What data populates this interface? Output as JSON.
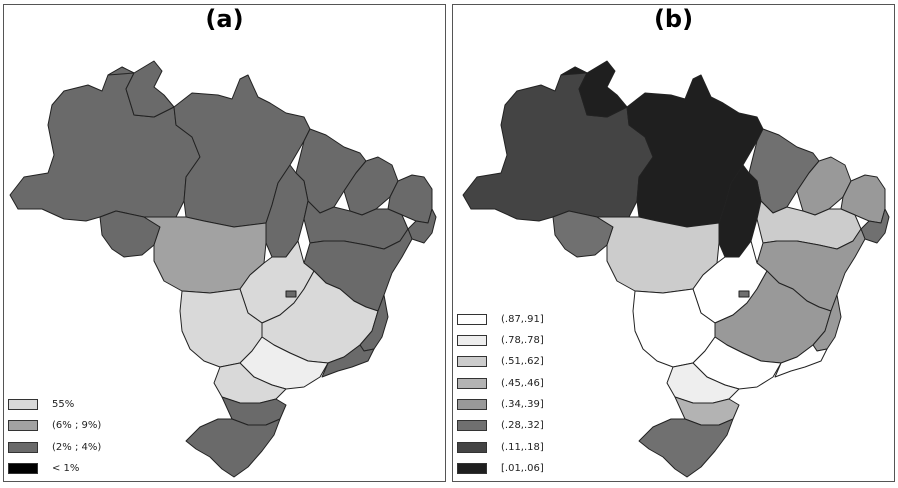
{
  "panel_a": {
    "title": "(a)",
    "legend": [
      {
        "label": "55%",
        "color": "#d9d9d9"
      },
      {
        "label": "(6% ; 9%)",
        "color": "#a2a2a2"
      },
      {
        "label": "(2% ; 4%)",
        "color": "#6a6a6a"
      },
      {
        "label": "< 1%",
        "color": "#000000"
      }
    ]
  },
  "panel_b": {
    "title": "(b)",
    "legend": [
      {
        "label": "(.87,.91]",
        "color": "#ffffff"
      },
      {
        "label": "(.78,.78]",
        "color": "#eeeeee"
      },
      {
        "label": "(.51,.62]",
        "color": "#cccccc"
      },
      {
        "label": "(.45,.46]",
        "color": "#b3b3b3"
      },
      {
        "label": "(.34,.39]",
        "color": "#999999"
      },
      {
        "label": "(.28,.32]",
        "color": "#707070"
      },
      {
        "label": "(.11,.18]",
        "color": "#444444"
      },
      {
        "label": "[.01,.06]",
        "color": "#1f1f1f"
      }
    ]
  },
  "regions": [
    {
      "name": "north-west",
      "color_a": "#6a6a6a",
      "color_b": "#444444"
    },
    {
      "name": "far-north",
      "color_a": "#6a6a6a",
      "color_b": "#1f1f1f"
    },
    {
      "name": "north-central",
      "color_a": "#6a6a6a",
      "color_b": "#1f1f1f"
    },
    {
      "name": "north-east-upper",
      "color_a": "#6a6a6a",
      "color_b": "#707070"
    },
    {
      "name": "north-east-tocantins",
      "color_a": "#6a6a6a",
      "color_b": "#1f1f1f"
    },
    {
      "name": "south-west-rondonia",
      "color_a": "#6a6a6a",
      "color_b": "#707070"
    },
    {
      "name": "east-piaui",
      "color_a": "#6a6a6a",
      "color_b": "#999999"
    },
    {
      "name": "north-east-coast",
      "color_a": "#6a6a6a",
      "color_b": "#999999"
    },
    {
      "name": "north-east-tip",
      "color_a": "#6a6a6a",
      "color_b": "#707070"
    },
    {
      "name": "center-west",
      "color_a": "#a2a2a2",
      "color_b": "#cccccc"
    },
    {
      "name": "tocantins-south",
      "color_a": "#6a6a6a",
      "color_b": "#cccccc"
    },
    {
      "name": "bahia",
      "color_a": "#6a6a6a",
      "color_b": "#999999"
    },
    {
      "name": "goias",
      "color_a": "#d9d9d9",
      "color_b": "#ffffff"
    },
    {
      "name": "federal-district",
      "color_a": "#6a6a6a",
      "color_b": "#707070"
    },
    {
      "name": "minas-gerais",
      "color_a": "#d9d9d9",
      "color_b": "#999999"
    },
    {
      "name": "espirito-santo",
      "color_a": "#6a6a6a",
      "color_b": "#999999"
    },
    {
      "name": "mato-grosso-sul",
      "color_a": "#d9d9d9",
      "color_b": "#ffffff"
    },
    {
      "name": "sao-paulo",
      "color_a": "#eeeeee",
      "color_b": "#ffffff"
    },
    {
      "name": "rio-de-janeiro",
      "color_a": "#6a6a6a",
      "color_b": "#ffffff"
    },
    {
      "name": "parana",
      "color_a": "#d9d9d9",
      "color_b": "#eeeeee"
    },
    {
      "name": "santa-catarina",
      "color_a": "#6a6a6a",
      "color_b": "#b3b3b3"
    },
    {
      "name": "rio-grande-sul",
      "color_a": "#6a6a6a",
      "color_b": "#707070"
    }
  ]
}
